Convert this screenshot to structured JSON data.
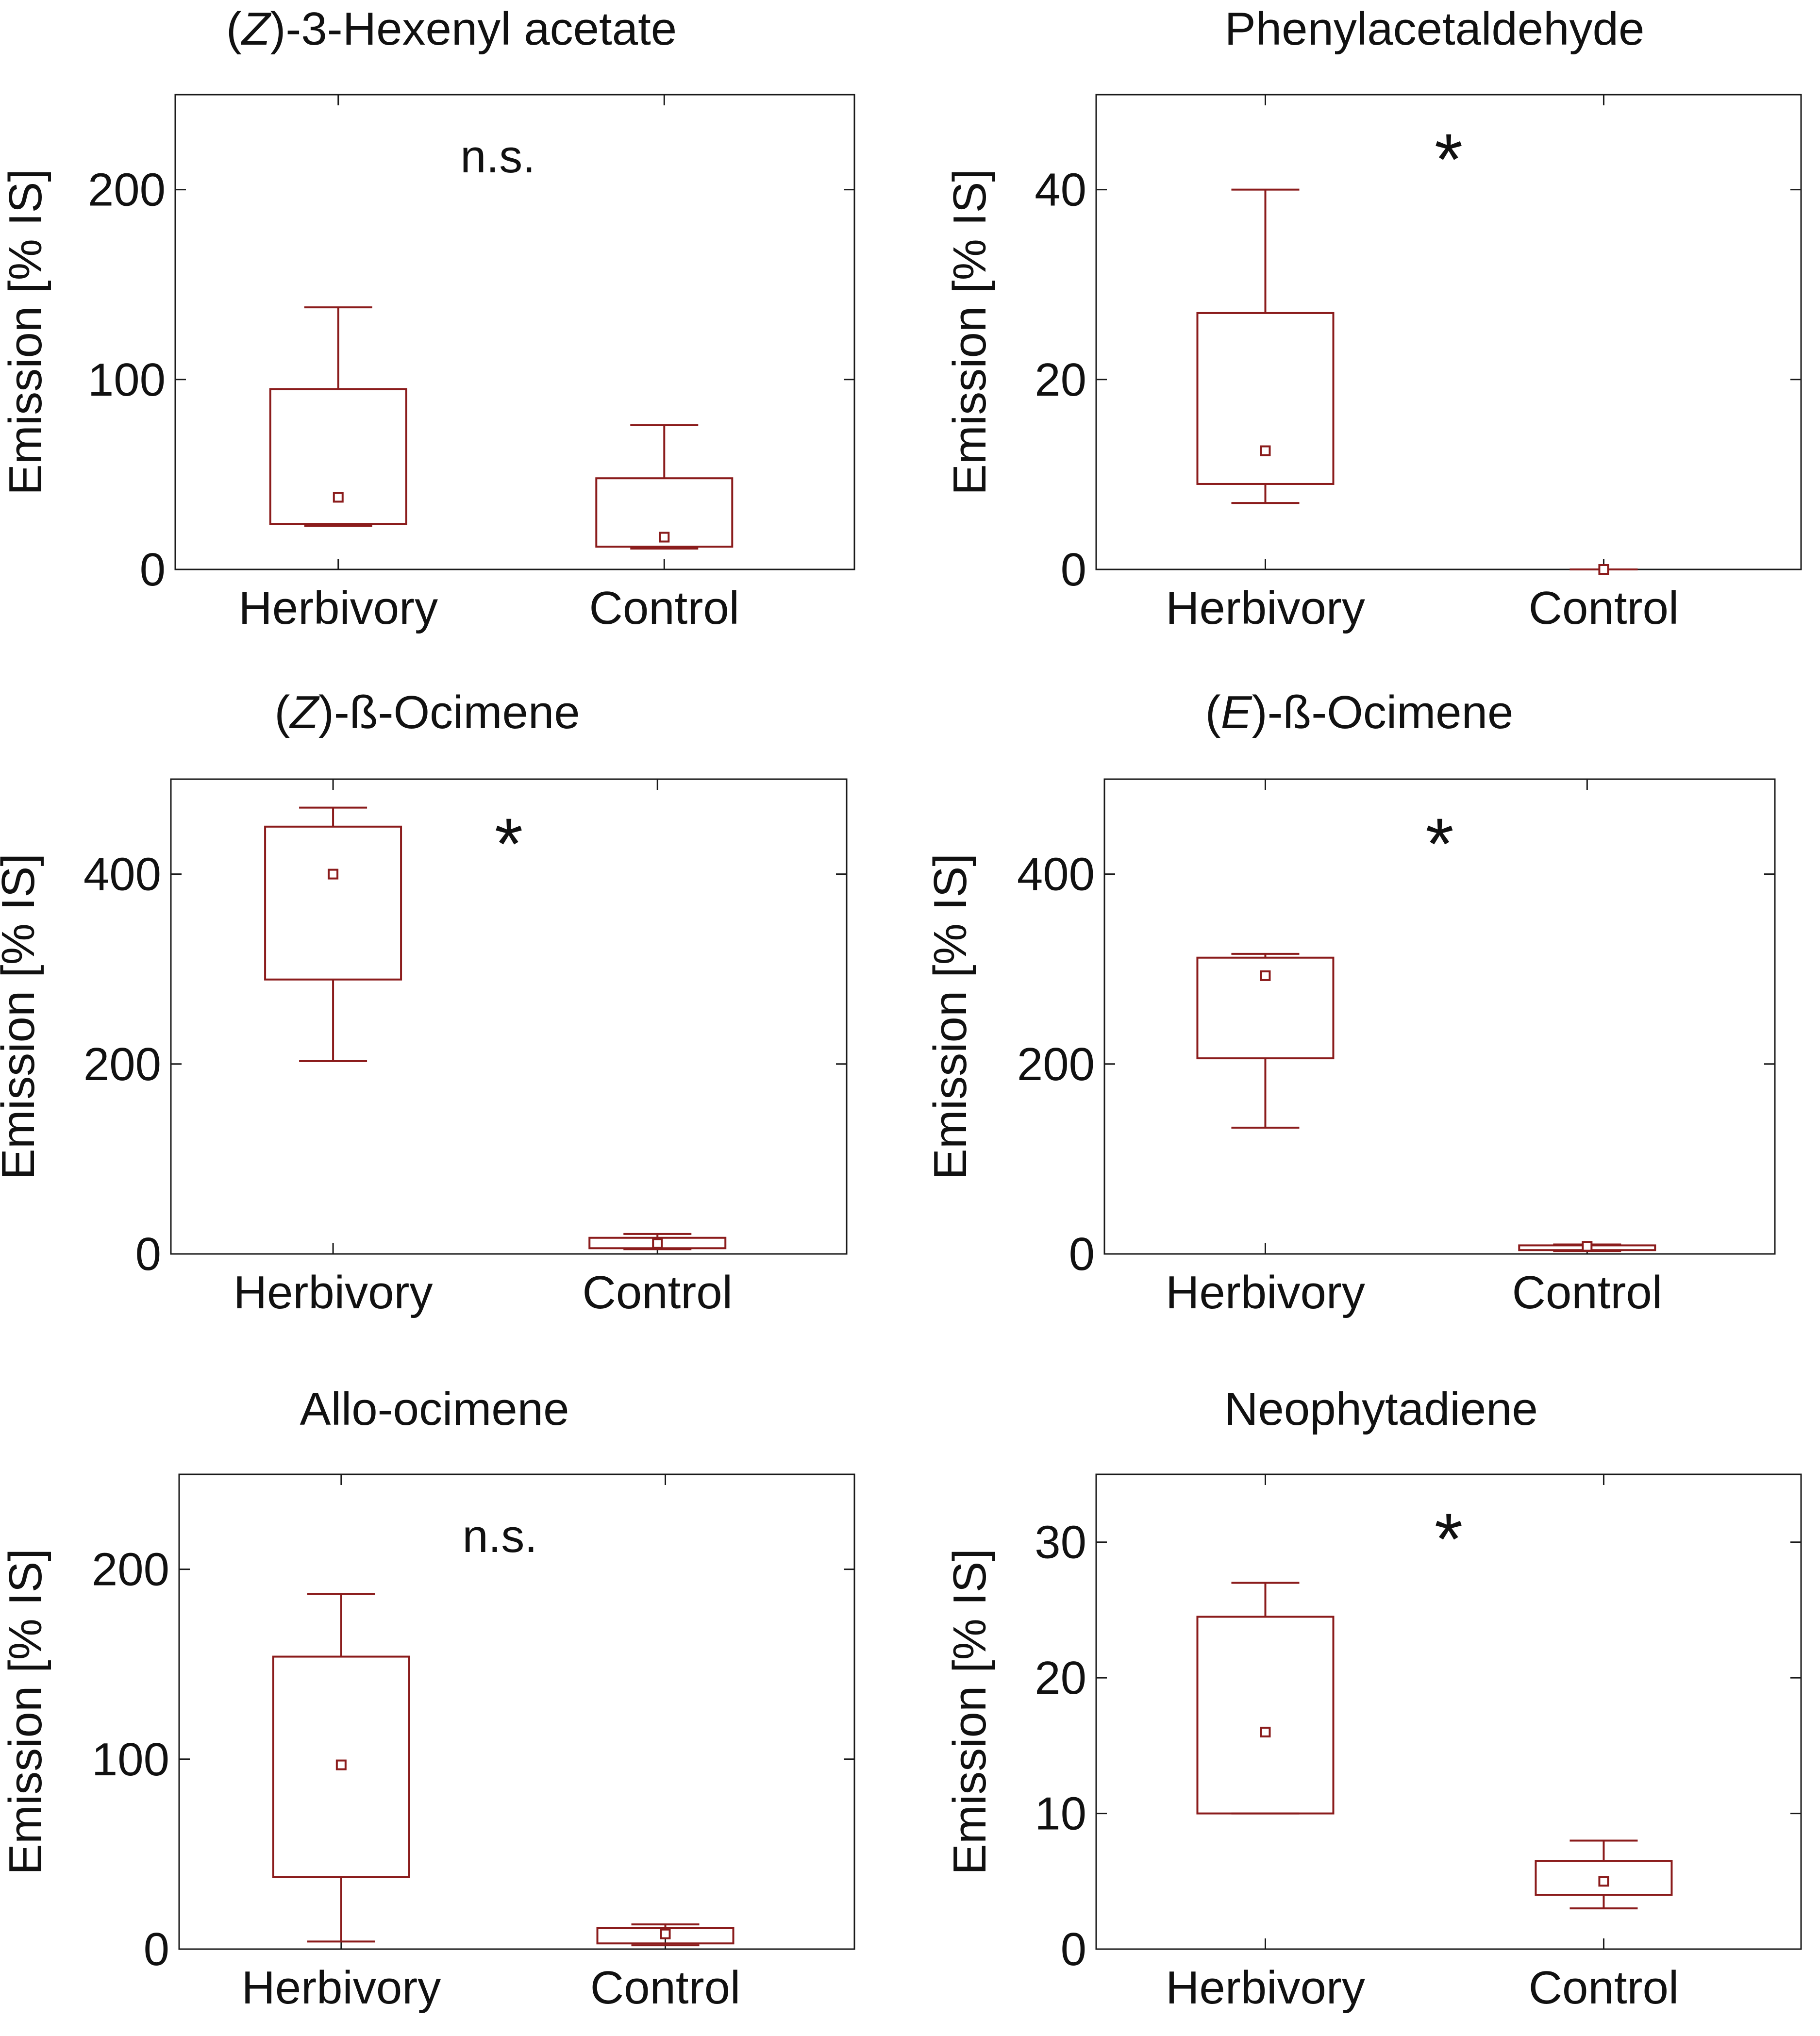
{
  "colors": {
    "box": "#8b1c1c",
    "frame": "#1a1a1a",
    "text": "#111111"
  },
  "chart_data": [
    {
      "type": "boxplot",
      "title": "(Z)-3-Hexenyl acetate",
      "title_parts": [
        {
          "text": "(",
          "italic": false
        },
        {
          "text": "Z",
          "italic": true
        },
        {
          "text": ")-3-Hexenyl acetate",
          "italic": false
        }
      ],
      "ylabel": "Emission [% IS]",
      "ylim": [
        0,
        250
      ],
      "yticks": [
        "0",
        "100",
        "200"
      ],
      "annotation": "n.s.",
      "categories": [
        "Herbivory",
        "Control"
      ],
      "boxes": [
        {
          "category": "Herbivory",
          "whisker_low": 23,
          "q1": 24,
          "median": 38,
          "q3": 95,
          "whisker_high": 138
        },
        {
          "category": "Control",
          "whisker_low": 11,
          "q1": 12,
          "median": 17,
          "q3": 48,
          "whisker_high": 76
        }
      ]
    },
    {
      "type": "boxplot",
      "title": "Phenylacetaldehyde",
      "title_parts": [
        {
          "text": "Phenylacetaldehyde",
          "italic": false
        }
      ],
      "ylabel": "Emission [% IS]",
      "ylim": [
        0,
        50
      ],
      "yticks": [
        "0",
        "20",
        "40"
      ],
      "annotation": "*",
      "categories": [
        "Herbivory",
        "Control"
      ],
      "boxes": [
        {
          "category": "Herbivory",
          "whisker_low": 7,
          "q1": 9,
          "median": 12.5,
          "q3": 27,
          "whisker_high": 40
        },
        {
          "category": "Control",
          "whisker_low": 0,
          "q1": 0,
          "median": 0,
          "q3": 0,
          "whisker_high": 0
        }
      ]
    },
    {
      "type": "boxplot",
      "title": "(Z)-ß-Ocimene",
      "title_parts": [
        {
          "text": "(",
          "italic": false
        },
        {
          "text": "Z",
          "italic": true
        },
        {
          "text": ")-ß-Ocimene",
          "italic": false
        }
      ],
      "ylabel": "Emission [% IS]",
      "ylim": [
        0,
        500
      ],
      "yticks": [
        "0",
        "200",
        "400"
      ],
      "annotation": "*",
      "categories": [
        "Herbivory",
        "Control"
      ],
      "boxes": [
        {
          "category": "Herbivory",
          "whisker_low": 203,
          "q1": 289,
          "median": 400,
          "q3": 450,
          "whisker_high": 470
        },
        {
          "category": "Control",
          "whisker_low": 5,
          "q1": 6,
          "median": 11,
          "q3": 17,
          "whisker_high": 21
        }
      ]
    },
    {
      "type": "boxplot",
      "title": "(E)-ß-Ocimene",
      "title_parts": [
        {
          "text": "(",
          "italic": false
        },
        {
          "text": "E",
          "italic": true
        },
        {
          "text": ")-ß-Ocimene",
          "italic": false
        }
      ],
      "ylabel": "Emission [% IS]",
      "ylim": [
        0,
        500
      ],
      "yticks": [
        "0",
        "200",
        "400"
      ],
      "annotation": "*",
      "categories": [
        "Herbivory",
        "Control"
      ],
      "boxes": [
        {
          "category": "Herbivory",
          "whisker_low": 133,
          "q1": 206,
          "median": 293,
          "q3": 312,
          "whisker_high": 316
        },
        {
          "category": "Control",
          "whisker_low": 3,
          "q1": 4,
          "median": 8,
          "q3": 9,
          "whisker_high": 10
        }
      ]
    },
    {
      "type": "boxplot",
      "title": "Allo-ocimene",
      "title_parts": [
        {
          "text": "Allo-ocimene",
          "italic": false
        }
      ],
      "ylabel": "Emission [% IS]",
      "ylim": [
        0,
        250
      ],
      "yticks": [
        "0",
        "100",
        "200"
      ],
      "annotation": "n.s.",
      "categories": [
        "Herbivory",
        "Control"
      ],
      "boxes": [
        {
          "category": "Herbivory",
          "whisker_low": 4,
          "q1": 38,
          "median": 97,
          "q3": 154,
          "whisker_high": 187
        },
        {
          "category": "Control",
          "whisker_low": 2,
          "q1": 3,
          "median": 8,
          "q3": 11,
          "whisker_high": 13
        }
      ]
    },
    {
      "type": "boxplot",
      "title": "Neophytadiene",
      "title_parts": [
        {
          "text": "Neophytadiene",
          "italic": false
        }
      ],
      "ylabel": "Emission [% IS]",
      "ylim": [
        0,
        35
      ],
      "yticks": [
        "0",
        "10",
        "20",
        "30"
      ],
      "annotation": "*",
      "categories": [
        "Herbivory",
        "Control"
      ],
      "boxes": [
        {
          "category": "Herbivory",
          "whisker_low": 10,
          "q1": 10,
          "median": 16,
          "q3": 24.5,
          "whisker_high": 27
        },
        {
          "category": "Control",
          "whisker_low": 3,
          "q1": 4,
          "median": 5,
          "q3": 6.5,
          "whisker_high": 8
        }
      ]
    }
  ]
}
